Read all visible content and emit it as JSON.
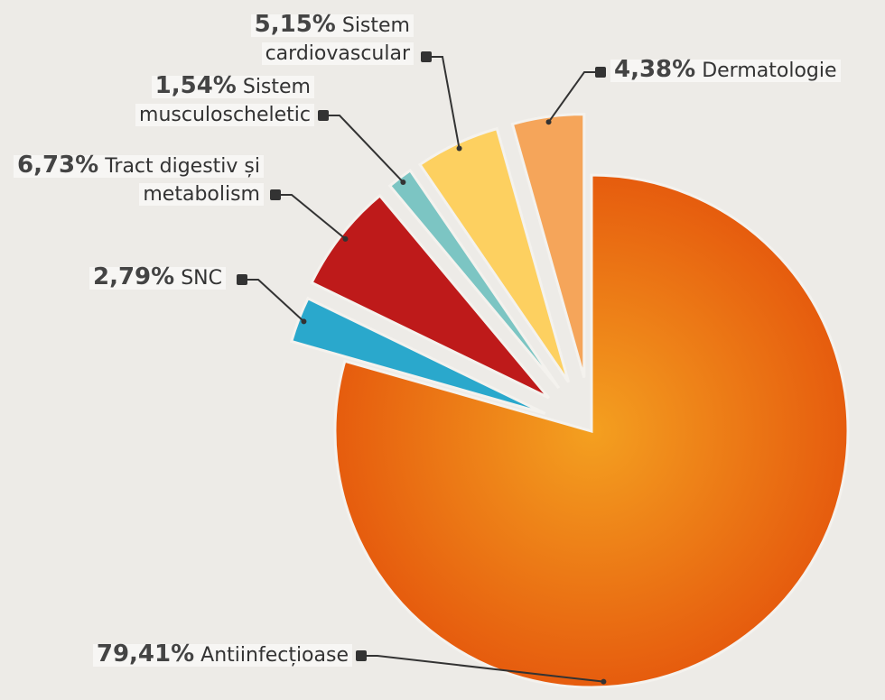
{
  "chart_data": {
    "type": "pie",
    "categories": [
      "Antiinfecțioase",
      "SNC",
      "Tract digestiv și metabolism",
      "Sistem musculoscheletic",
      "Sistem cardiovascular",
      "Dermatologie"
    ],
    "values": [
      79.41,
      2.79,
      6.73,
      1.54,
      5.15,
      4.38
    ],
    "value_labels": [
      "79,41%",
      "2,79%",
      "6,73%",
      "1,54%",
      "5,15%",
      "4,38%"
    ],
    "colors": [
      "#e8650f",
      "#2aa8cc",
      "#be1a1a",
      "#7cc5c3",
      "#fdd060",
      "#f5a55a"
    ]
  }
}
